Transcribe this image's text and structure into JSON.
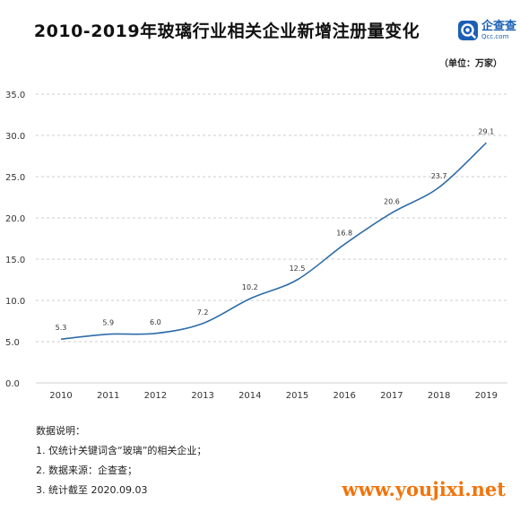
{
  "header": {
    "title": "2010-2019年玻璃行业相关企业新增注册量变化",
    "unit": "（单位：万家）"
  },
  "logo": {
    "icon": "qcc-logo-icon",
    "name": "企查查",
    "domain": "Qcc.com",
    "color": "#1a5fb4"
  },
  "chart_data": {
    "type": "line",
    "title": "2010-2019年玻璃行业相关企业新增注册量变化",
    "categories": [
      "2010",
      "2011",
      "2012",
      "2013",
      "2014",
      "2015",
      "2016",
      "2017",
      "2018",
      "2019"
    ],
    "series": [
      {
        "values": [
          5.3,
          5.9,
          6.0,
          7.2,
          10.2,
          12.5,
          16.8,
          20.6,
          23.7,
          29.1
        ]
      }
    ],
    "data_labels": [
      "5.3",
      "5.9",
      "6.0",
      "7.2",
      "10.2",
      "12.5",
      "16.8",
      "20.6",
      "23.7",
      "29.1"
    ],
    "y_ticks": [
      "0.0",
      "5.0",
      "10.0",
      "15.0",
      "20.0",
      "25.0",
      "30.0",
      "35.0"
    ],
    "ylim": [
      0,
      35
    ],
    "grid": "horizontal-dashed",
    "line_color": "#2e6ca8"
  },
  "notes": {
    "heading": "数据说明：",
    "items": [
      "1. 仅统计关键词含“玻璃”的相关企业；",
      "2. 数据来源：企查查；",
      "3. 统计截至 2020.09.03"
    ]
  },
  "watermark": "www.youjixi.net",
  "colors": {
    "watermark": "#f2740c",
    "grid": "#bfbfbf"
  }
}
